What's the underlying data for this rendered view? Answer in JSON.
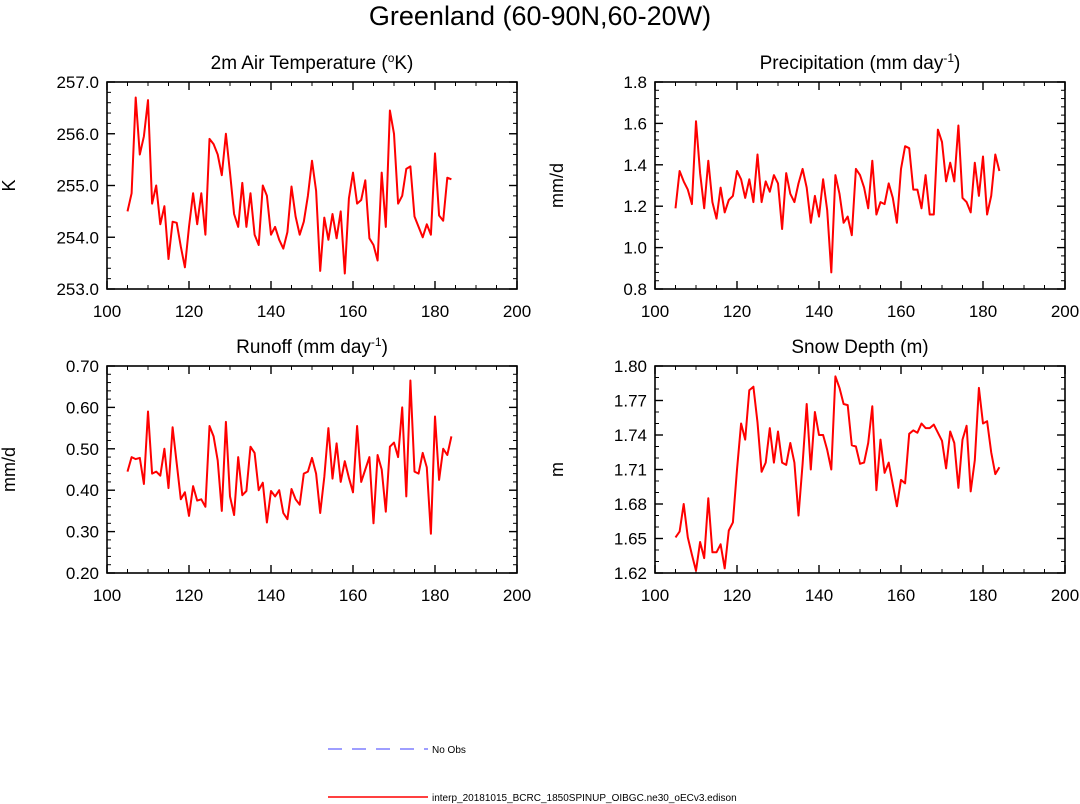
{
  "figure": {
    "title": "Greenland (60-90N,60-20W)"
  },
  "colors": {
    "series": "#ff0000",
    "obs": "#7f7fff",
    "axis": "#000000"
  },
  "legend": {
    "entries": [
      {
        "label": "No Obs",
        "style": "dashed",
        "color": "#7f7fff"
      },
      {
        "label": "interp_20181015_BCRC_1850SPINUP_OIBGC.ne30_oECv3.edison",
        "style": "solid",
        "color": "#ff0000"
      }
    ]
  },
  "chart_data": [
    {
      "type": "line",
      "title": "2m Air Temperature (",
      "title_sup": "o",
      "title_tail": "K)",
      "ylabel": "K",
      "xlim": [
        100,
        200
      ],
      "ylim": [
        253.0,
        257.0
      ],
      "xticks": [
        100,
        120,
        140,
        160,
        180,
        200
      ],
      "yticks": [
        "253.0",
        "254.0",
        "255.0",
        "256.0",
        "257.0"
      ],
      "x_start": 105,
      "series": [
        {
          "values": [
            254.5,
            254.85,
            256.7,
            255.6,
            255.95,
            256.65,
            254.65,
            255.0,
            254.25,
            254.6,
            253.58,
            254.3,
            254.28,
            253.82,
            253.42,
            254.2,
            254.85,
            254.25,
            254.85,
            254.05,
            255.9,
            255.8,
            255.6,
            255.2,
            256.0,
            255.25,
            254.45,
            254.2,
            255.05,
            254.2,
            254.85,
            254.05,
            253.85,
            255.0,
            254.8,
            254.05,
            254.2,
            253.95,
            253.78,
            254.1,
            254.98,
            254.4,
            254.05,
            254.3,
            254.8,
            255.48,
            254.9,
            253.35,
            254.38,
            253.95,
            254.45,
            253.98,
            254.5,
            253.3,
            254.75,
            255.25,
            254.65,
            254.72,
            255.1,
            253.98,
            253.85,
            253.55,
            255.25,
            254.2,
            256.45,
            256.0,
            254.65,
            254.8,
            255.32,
            255.37,
            254.4,
            254.2,
            254.0,
            254.25,
            254.05,
            255.62,
            254.42,
            254.32,
            255.15,
            255.12
          ]
        }
      ]
    },
    {
      "type": "line",
      "title": "Precipitation (mm day",
      "title_sup": "-1",
      "title_tail": ")",
      "ylabel": "mm/d",
      "xlim": [
        100,
        200
      ],
      "ylim": [
        0.8,
        1.8
      ],
      "xticks": [
        100,
        120,
        140,
        160,
        180,
        200
      ],
      "yticks": [
        "0.8",
        "1.0",
        "1.2",
        "1.4",
        "1.6",
        "1.8"
      ],
      "x_start": 105,
      "series": [
        {
          "values": [
            1.19,
            1.37,
            1.32,
            1.28,
            1.21,
            1.61,
            1.36,
            1.19,
            1.42,
            1.22,
            1.14,
            1.29,
            1.17,
            1.23,
            1.25,
            1.37,
            1.33,
            1.24,
            1.33,
            1.22,
            1.45,
            1.22,
            1.32,
            1.27,
            1.35,
            1.31,
            1.09,
            1.36,
            1.26,
            1.22,
            1.31,
            1.38,
            1.29,
            1.12,
            1.25,
            1.15,
            1.33,
            1.18,
            0.88,
            1.35,
            1.26,
            1.12,
            1.15,
            1.06,
            1.38,
            1.35,
            1.29,
            1.19,
            1.42,
            1.16,
            1.22,
            1.21,
            1.31,
            1.24,
            1.12,
            1.38,
            1.49,
            1.48,
            1.28,
            1.28,
            1.19,
            1.35,
            1.16,
            1.16,
            1.57,
            1.51,
            1.32,
            1.41,
            1.32,
            1.59,
            1.24,
            1.22,
            1.17,
            1.41,
            1.25,
            1.44,
            1.16,
            1.25,
            1.45,
            1.37
          ]
        }
      ]
    },
    {
      "type": "line",
      "title": "Runoff (mm day",
      "title_sup": "-1",
      "title_tail": ")",
      "ylabel": "mm/d",
      "xlim": [
        100,
        200
      ],
      "ylim": [
        0.2,
        0.7
      ],
      "xticks": [
        100,
        120,
        140,
        160,
        180,
        200
      ],
      "yticks": [
        "0.20",
        "0.30",
        "0.40",
        "0.50",
        "0.60",
        "0.70"
      ],
      "x_start": 105,
      "series": [
        {
          "values": [
            0.445,
            0.48,
            0.475,
            0.478,
            0.415,
            0.59,
            0.44,
            0.445,
            0.435,
            0.5,
            0.405,
            0.552,
            0.465,
            0.378,
            0.395,
            0.338,
            0.41,
            0.375,
            0.378,
            0.36,
            0.555,
            0.53,
            0.472,
            0.35,
            0.565,
            0.385,
            0.34,
            0.48,
            0.388,
            0.398,
            0.505,
            0.49,
            0.4,
            0.418,
            0.322,
            0.398,
            0.385,
            0.4,
            0.345,
            0.33,
            0.403,
            0.378,
            0.365,
            0.44,
            0.445,
            0.478,
            0.44,
            0.345,
            0.432,
            0.55,
            0.428,
            0.513,
            0.42,
            0.47,
            0.43,
            0.395,
            0.555,
            0.42,
            0.45,
            0.48,
            0.32,
            0.485,
            0.45,
            0.348,
            0.505,
            0.515,
            0.48,
            0.6,
            0.385,
            0.665,
            0.445,
            0.44,
            0.49,
            0.455,
            0.295,
            0.578,
            0.425,
            0.5,
            0.485,
            0.53
          ]
        }
      ]
    },
    {
      "type": "line",
      "title": "Snow Depth (m)",
      "title_sup": "",
      "title_tail": "",
      "ylabel": "m",
      "xlim": [
        100,
        200
      ],
      "ylim": [
        1.62,
        1.8
      ],
      "xticks": [
        100,
        120,
        140,
        160,
        180,
        200
      ],
      "yticks": [
        "1.62",
        "1.65",
        "1.68",
        "1.71",
        "1.74",
        "1.77",
        "1.80"
      ],
      "x_start": 105,
      "series": [
        {
          "values": [
            1.651,
            1.656,
            1.68,
            1.651,
            1.636,
            1.622,
            1.647,
            1.633,
            1.685,
            1.638,
            1.638,
            1.645,
            1.624,
            1.657,
            1.664,
            1.71,
            1.75,
            1.736,
            1.779,
            1.782,
            1.751,
            1.708,
            1.716,
            1.746,
            1.716,
            1.743,
            1.716,
            1.714,
            1.733,
            1.716,
            1.67,
            1.715,
            1.767,
            1.71,
            1.76,
            1.74,
            1.74,
            1.727,
            1.71,
            1.791,
            1.781,
            1.767,
            1.766,
            1.731,
            1.73,
            1.715,
            1.716,
            1.733,
            1.765,
            1.692,
            1.736,
            1.707,
            1.716,
            1.697,
            1.678,
            1.701,
            1.698,
            1.741,
            1.744,
            1.742,
            1.75,
            1.746,
            1.746,
            1.749,
            1.742,
            1.735,
            1.711,
            1.743,
            1.733,
            1.694,
            1.736,
            1.748,
            1.691,
            1.718,
            1.781,
            1.75,
            1.752,
            1.725,
            1.706,
            1.712
          ]
        }
      ]
    }
  ]
}
